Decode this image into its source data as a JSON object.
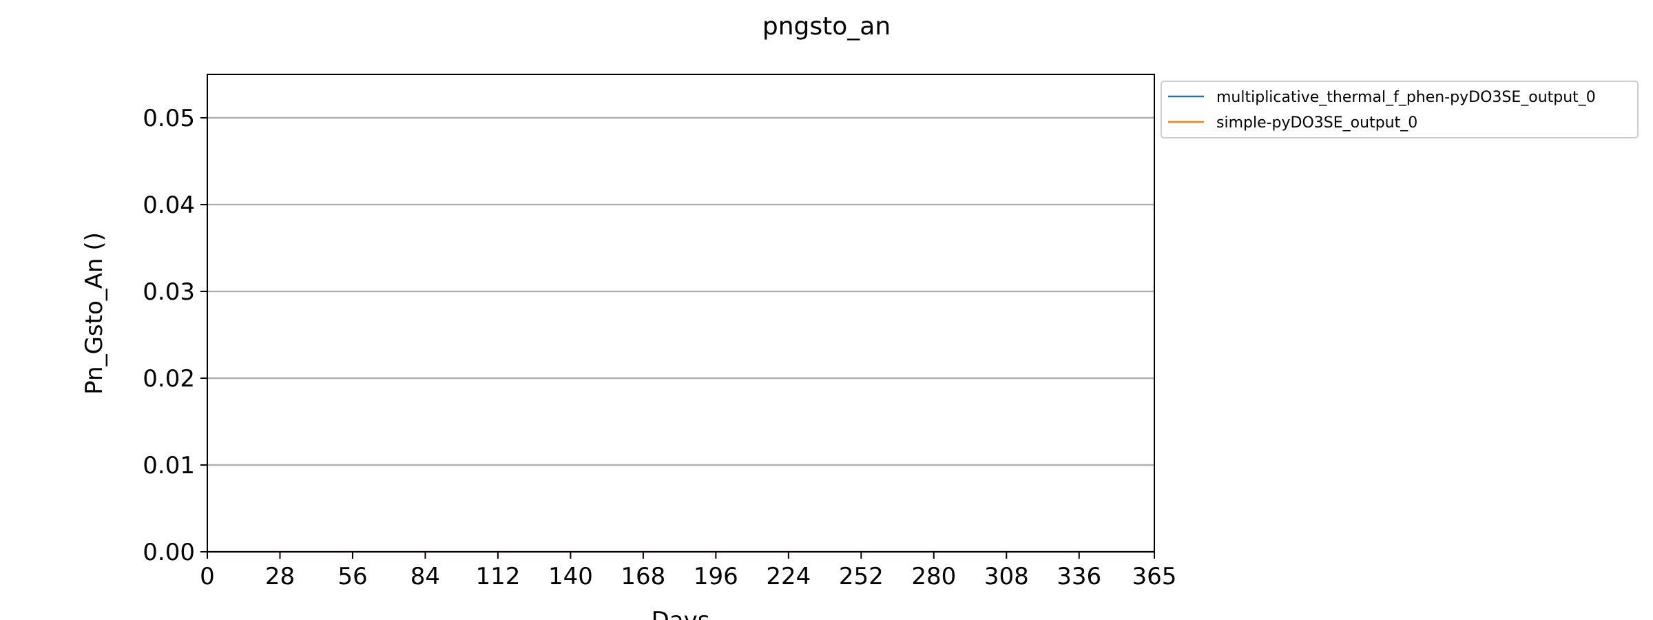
{
  "chart_data": {
    "type": "line",
    "title": "pngsto_an",
    "xlabel": "Days",
    "ylabel": "Pn_Gsto_An ()",
    "xlim": [
      0,
      365
    ],
    "ylim": [
      0,
      0.055
    ],
    "x_ticks": [
      0,
      28,
      56,
      84,
      112,
      140,
      168,
      196,
      224,
      252,
      280,
      308,
      336,
      365
    ],
    "y_ticks": [
      0.0,
      0.01,
      0.02,
      0.03,
      0.04,
      0.05
    ],
    "y_tick_labels": [
      "0.00",
      "0.01",
      "0.02",
      "0.03",
      "0.04",
      "0.05"
    ],
    "grid": "horizontal",
    "legend_position": "outside-top-right",
    "series": [
      {
        "name": "multiplicative_thermal_f_phen-pyDO3SE_output_0",
        "color": "#1f77b4",
        "x": [
          0,
          365
        ],
        "y": [
          0,
          0
        ]
      },
      {
        "name": "simple-pyDO3SE_output_0",
        "color": "#ff7f0e",
        "x": [
          0,
          365
        ],
        "y": [
          0,
          0
        ]
      }
    ]
  }
}
